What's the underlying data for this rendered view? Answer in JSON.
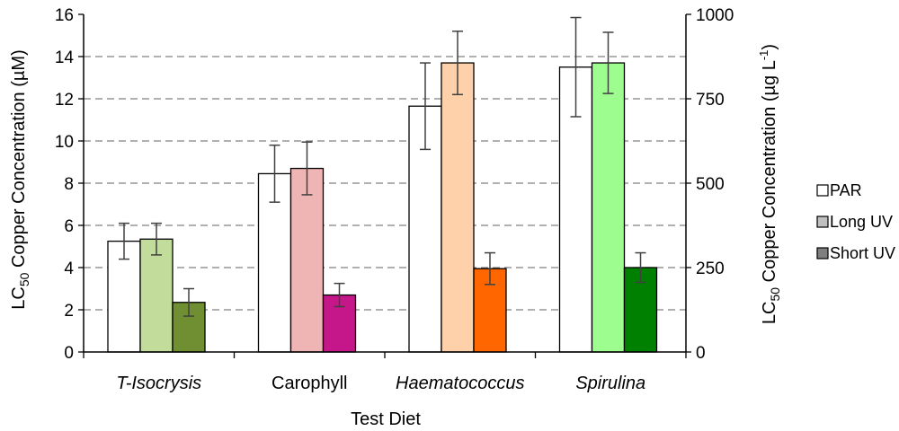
{
  "chart_data": {
    "type": "bar",
    "xlabel": "Test Diet",
    "ylabel": {
      "prefix": "LC",
      "subscript": "50",
      "suffix": " Copper Concentration (µM)"
    },
    "y2label": {
      "prefix": "LC",
      "subscript": "50",
      "suffix": " Copper Concentration (µg L",
      "sup": "-1",
      "close": ")"
    },
    "ylim": [
      0,
      16
    ],
    "yticks": [
      "0",
      "2",
      "4",
      "6",
      "8",
      "10",
      "12",
      "14",
      "16"
    ],
    "y2lim": [
      0,
      1000
    ],
    "y2ticks": [
      "0",
      "250",
      "500",
      "750",
      "1000"
    ],
    "grid": "horizontal dashed",
    "categories": [
      "T-Isocrysis",
      "Carophyll",
      "Haematococcus",
      "Spirulina"
    ],
    "category_italic": [
      true,
      false,
      true,
      true
    ],
    "series": [
      {
        "name": "PAR",
        "values": [
          5.25,
          8.45,
          11.65,
          13.5
        ],
        "errors": [
          0.85,
          1.35,
          2.05,
          2.35
        ]
      },
      {
        "name": "Long UV",
        "values": [
          5.35,
          8.7,
          13.7,
          13.7
        ],
        "errors": [
          0.75,
          1.25,
          1.5,
          1.45
        ]
      },
      {
        "name": "Short UV",
        "values": [
          2.35,
          2.7,
          3.95,
          4.0
        ],
        "errors": [
          0.65,
          0.55,
          0.75,
          0.7
        ]
      }
    ],
    "bar_colors": [
      [
        "#ffffff",
        "#c2dc9b",
        "#6f8f32"
      ],
      [
        "#ffffff",
        "#efb5b5",
        "#c5178a"
      ],
      [
        "#ffffff",
        "#ffd1aa",
        "#ff6600"
      ],
      [
        "#ffffff",
        "#9efd8f",
        "#008000"
      ]
    ],
    "legend": {
      "position": "right",
      "items": [
        {
          "label": "PAR",
          "color": "#ffffff"
        },
        {
          "label": "Long UV",
          "color": "#c0c0c0"
        },
        {
          "label": "Short UV",
          "color": "#7f7f7f"
        }
      ]
    }
  }
}
